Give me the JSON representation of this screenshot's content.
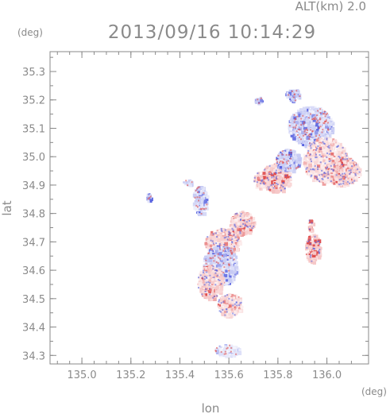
{
  "header": {
    "altitude_label": "ALT(km) 2.0",
    "timestamp": "2013/09/16 10:14:29"
  },
  "colors": {
    "frame": "#8a8a8a",
    "text": "#8a8a8a",
    "positive": "#e05050",
    "negative": "#5a64e0",
    "light_positive": "#f6c8c8",
    "light_negative": "#c8ccf4"
  },
  "chart_data": {
    "type": "heatmap",
    "title": "2013/09/16 10:14:29",
    "subtitle": "ALT(km) 2.0",
    "xlabel": "lon",
    "ylabel": "lat",
    "x_unit": "(deg)",
    "y_unit": "(deg)",
    "xlim": [
      134.87,
      136.17
    ],
    "ylim": [
      34.27,
      35.37
    ],
    "x_ticks": [
      135.0,
      135.2,
      135.4,
      135.6,
      135.8,
      136.0
    ],
    "x_tick_labels": [
      "135.0",
      "135.2",
      "135.4",
      "135.6",
      "135.8",
      "136.0"
    ],
    "y_ticks": [
      34.3,
      34.4,
      34.5,
      34.6,
      34.7,
      34.8,
      34.9,
      35.0,
      35.1,
      35.2,
      35.3
    ],
    "y_tick_labels": [
      "34.3",
      "34.4",
      "34.5",
      "34.6",
      "34.7",
      "34.8",
      "34.9",
      "35.0",
      "35.1",
      "35.2",
      "35.3"
    ],
    "grid": false,
    "legend": "none",
    "echo_regions": [
      {
        "lon": 135.93,
        "lat": 35.11,
        "r_lon": 0.09,
        "r_lat": 0.07,
        "sign": "negative",
        "intensity": 0.35
      },
      {
        "lon": 135.99,
        "lat": 34.99,
        "r_lon": 0.09,
        "r_lat": 0.08,
        "sign": "positive",
        "intensity": 0.25
      },
      {
        "lon": 136.06,
        "lat": 34.95,
        "r_lon": 0.07,
        "r_lat": 0.05,
        "sign": "positive",
        "intensity": 0.35
      },
      {
        "lon": 135.86,
        "lat": 35.22,
        "r_lon": 0.03,
        "r_lat": 0.02,
        "sign": "negative",
        "intensity": 0.6
      },
      {
        "lon": 135.72,
        "lat": 35.2,
        "r_lon": 0.015,
        "r_lat": 0.012,
        "sign": "negative",
        "intensity": 0.7
      },
      {
        "lon": 135.79,
        "lat": 34.93,
        "r_lon": 0.06,
        "r_lat": 0.05,
        "sign": "positive",
        "intensity": 0.45
      },
      {
        "lon": 135.84,
        "lat": 34.99,
        "r_lon": 0.05,
        "r_lat": 0.04,
        "sign": "negative",
        "intensity": 0.4
      },
      {
        "lon": 135.94,
        "lat": 34.68,
        "r_lon": 0.03,
        "r_lat": 0.05,
        "sign": "positive",
        "intensity": 0.6
      },
      {
        "lon": 135.93,
        "lat": 34.76,
        "r_lon": 0.01,
        "r_lat": 0.02,
        "sign": "positive",
        "intensity": 0.5
      },
      {
        "lon": 135.65,
        "lat": 34.77,
        "r_lon": 0.05,
        "r_lat": 0.04,
        "sign": "positive",
        "intensity": 0.35
      },
      {
        "lon": 135.57,
        "lat": 34.7,
        "r_lon": 0.07,
        "r_lat": 0.05,
        "sign": "positive",
        "intensity": 0.3
      },
      {
        "lon": 135.56,
        "lat": 34.62,
        "r_lon": 0.07,
        "r_lat": 0.07,
        "sign": "negative",
        "intensity": 0.35
      },
      {
        "lon": 135.52,
        "lat": 34.56,
        "r_lon": 0.05,
        "r_lat": 0.06,
        "sign": "positive",
        "intensity": 0.35
      },
      {
        "lon": 135.6,
        "lat": 34.48,
        "r_lon": 0.05,
        "r_lat": 0.04,
        "sign": "positive",
        "intensity": 0.3
      },
      {
        "lon": 135.48,
        "lat": 34.85,
        "r_lon": 0.03,
        "r_lat": 0.05,
        "sign": "negative",
        "intensity": 0.35
      },
      {
        "lon": 135.43,
        "lat": 34.91,
        "r_lon": 0.02,
        "r_lat": 0.01,
        "sign": "negative",
        "intensity": 0.4
      },
      {
        "lon": 135.27,
        "lat": 34.86,
        "r_lon": 0.008,
        "r_lat": 0.015,
        "sign": "negative",
        "intensity": 0.45
      },
      {
        "lon": 135.59,
        "lat": 34.32,
        "r_lon": 0.05,
        "r_lat": 0.02,
        "sign": "negative",
        "intensity": 0.2
      },
      {
        "lon": 135.73,
        "lat": 34.92,
        "r_lon": 0.03,
        "r_lat": 0.03,
        "sign": "positive",
        "intensity": 0.35
      }
    ]
  }
}
